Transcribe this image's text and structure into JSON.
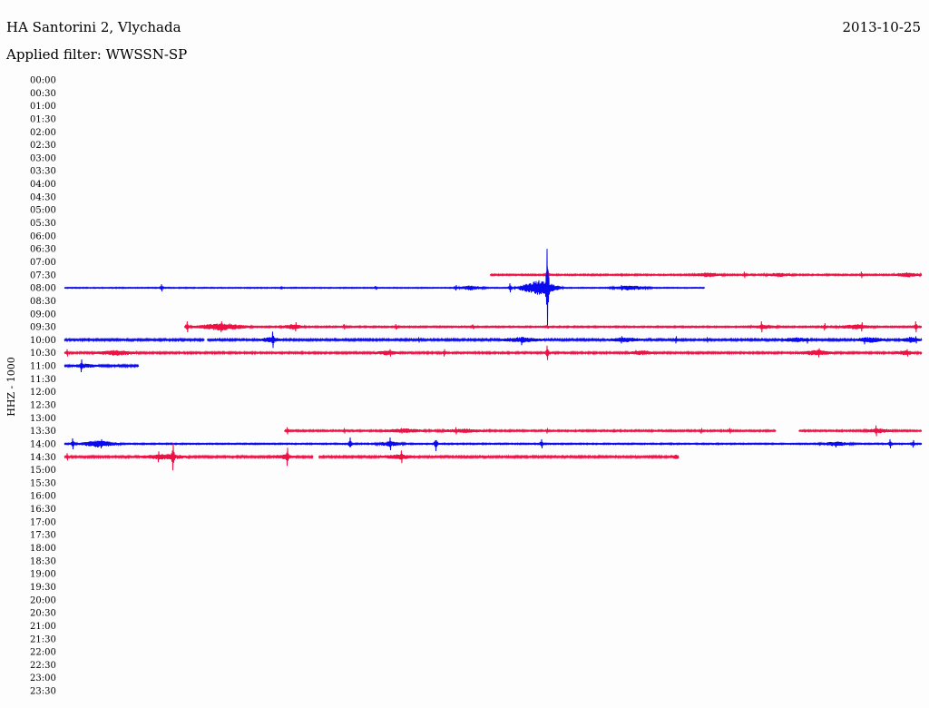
{
  "header": {
    "station": "HA Santorini 2, Vlychada",
    "date": "2013-10-25",
    "filter": "Applied filter: WWSSN-SP"
  },
  "chart_data": {
    "type": "line",
    "title": "HA Santorini 2, Vlychada",
    "ylabel": "HHZ - 1000",
    "y_tick_labels": [
      "00:00",
      "00:30",
      "01:00",
      "01:30",
      "02:00",
      "02:30",
      "03:00",
      "03:30",
      "04:00",
      "04:30",
      "05:00",
      "05:30",
      "06:00",
      "06:30",
      "07:00",
      "07:30",
      "08:00",
      "08:30",
      "09:00",
      "09:30",
      "10:00",
      "10:30",
      "11:00",
      "11:30",
      "12:00",
      "12:30",
      "13:00",
      "13:30",
      "14:00",
      "14:30",
      "15:00",
      "15:30",
      "16:00",
      "16:30",
      "17:00",
      "17:30",
      "18:00",
      "18:30",
      "19:00",
      "19:30",
      "20:00",
      "20:30",
      "21:00",
      "21:30",
      "22:00",
      "22:30",
      "23:00",
      "23:30"
    ],
    "x_range_minutes": [
      0,
      30
    ],
    "colors": {
      "odd_row": "#ee1144",
      "even_row": "#0a0aee"
    },
    "traces": [
      {
        "row": "07:30",
        "color": "#ee1144",
        "start_min": 14.9,
        "end_min": 30,
        "noise": 0.8,
        "segments": [
          {
            "start": 14.9,
            "end": 30
          }
        ],
        "events": [
          {
            "t": 16.9,
            "amp": 9
          },
          {
            "t": 19.5,
            "amp": 1.5
          },
          {
            "t": 23.8,
            "amp": 3.5
          },
          {
            "t": 27.9,
            "amp": 3.5
          }
        ],
        "bursts": [
          {
            "t": 22.5,
            "w": 1.3,
            "amp": 2.2
          },
          {
            "t": 25.0,
            "w": 1.2,
            "amp": 2
          },
          {
            "t": 29.5,
            "w": 1.2,
            "amp": 2.3
          }
        ]
      },
      {
        "row": "08:00",
        "color": "#0a0aee",
        "start_min": 0,
        "end_min": 22.4,
        "noise": 0.55,
        "segments": [
          {
            "start": 0,
            "end": 22.4
          }
        ],
        "events": [
          {
            "t": 3.4,
            "amp": 4
          },
          {
            "t": 7.6,
            "amp": 1.5
          },
          {
            "t": 10.9,
            "amp": 2
          },
          {
            "t": 13.7,
            "amp": 3
          },
          {
            "t": 16.9,
            "amp": 43
          },
          {
            "t": 15.6,
            "amp": 5
          },
          {
            "t": 19.5,
            "amp": 3
          }
        ],
        "bursts": [
          {
            "t": 14.2,
            "w": 1.2,
            "amp": 2.4
          },
          {
            "t": 16.6,
            "w": 1.8,
            "amp": 8
          },
          {
            "t": 19.8,
            "w": 1.6,
            "amp": 2.5
          }
        ]
      },
      {
        "row": "09:30",
        "color": "#ee1144",
        "start_min": 4.2,
        "end_min": 30,
        "noise": 0.8,
        "segments": [
          {
            "start": 4.2,
            "end": 30
          }
        ],
        "events": [
          {
            "t": 4.3,
            "amp": 6
          },
          {
            "t": 5.5,
            "amp": 6
          },
          {
            "t": 8.1,
            "amp": 5
          },
          {
            "t": 9.8,
            "amp": 3
          },
          {
            "t": 11.6,
            "amp": 3
          },
          {
            "t": 14.3,
            "amp": 2.5
          },
          {
            "t": 16.9,
            "amp": 2
          },
          {
            "t": 24.4,
            "amp": 6
          },
          {
            "t": 26.6,
            "amp": 4
          },
          {
            "t": 27.9,
            "amp": 5
          },
          {
            "t": 29.8,
            "amp": 6
          }
        ],
        "bursts": [
          {
            "t": 5.5,
            "w": 2.4,
            "amp": 3.8
          },
          {
            "t": 8.0,
            "w": 1.0,
            "amp": 2.5
          },
          {
            "t": 24.5,
            "w": 1.2,
            "amp": 2
          },
          {
            "t": 27.7,
            "w": 1.6,
            "amp": 2.5
          }
        ]
      },
      {
        "row": "10:00",
        "color": "#0a0aee",
        "start_min": 0,
        "end_min": 30,
        "noise": 1.1,
        "segments": [
          {
            "start": 0,
            "end": 4.9
          },
          {
            "start": 5.0,
            "end": 30
          }
        ],
        "events": [
          {
            "t": 7.3,
            "amp": 9
          },
          {
            "t": 12.4,
            "amp": 3
          },
          {
            "t": 16.0,
            "amp": 6
          },
          {
            "t": 19.5,
            "amp": 4
          },
          {
            "t": 21.4,
            "amp": 4
          },
          {
            "t": 22.5,
            "amp": 3
          },
          {
            "t": 26.0,
            "amp": 4
          },
          {
            "t": 28.0,
            "amp": 5
          },
          {
            "t": 29.8,
            "amp": 4
          }
        ],
        "bursts": [
          {
            "t": 7.2,
            "w": 1.0,
            "amp": 2.2
          },
          {
            "t": 16.0,
            "w": 1.8,
            "amp": 2.4
          },
          {
            "t": 19.6,
            "w": 1.5,
            "amp": 2
          },
          {
            "t": 25.6,
            "w": 1.2,
            "amp": 2.3
          },
          {
            "t": 28.2,
            "w": 1.3,
            "amp": 2.6
          },
          {
            "t": 29.6,
            "w": 0.8,
            "amp": 2.6
          }
        ]
      },
      {
        "row": "10:30",
        "color": "#ee1144",
        "start_min": 0,
        "end_min": 30,
        "noise": 1.0,
        "segments": [
          {
            "start": 0,
            "end": 30
          }
        ],
        "events": [
          {
            "t": 0.1,
            "amp": 4
          },
          {
            "t": 1.7,
            "amp": 3
          },
          {
            "t": 11.4,
            "amp": 4
          },
          {
            "t": 13.3,
            "amp": 4
          },
          {
            "t": 16.9,
            "amp": 8
          },
          {
            "t": 20.0,
            "amp": 3
          },
          {
            "t": 26.4,
            "amp": 5
          },
          {
            "t": 29.5,
            "amp": 4
          }
        ],
        "bursts": [
          {
            "t": 1.8,
            "w": 1.8,
            "amp": 2.3
          },
          {
            "t": 11.3,
            "w": 1.0,
            "amp": 2.2
          },
          {
            "t": 20.2,
            "w": 1.2,
            "amp": 2
          },
          {
            "t": 26.3,
            "w": 1.5,
            "amp": 2.6
          },
          {
            "t": 29.4,
            "w": 0.9,
            "amp": 2
          }
        ]
      },
      {
        "row": "11:00",
        "color": "#0a0aee",
        "start_min": 0,
        "end_min": 2.6,
        "noise": 1.1,
        "segments": [
          {
            "start": 0,
            "end": 2.6
          }
        ],
        "events": [
          {
            "t": 0.6,
            "amp": 7
          }
        ],
        "bursts": [
          {
            "t": 0.7,
            "w": 1.0,
            "amp": 1.8
          }
        ]
      },
      {
        "row": "13:30",
        "color": "#ee1144",
        "start_min": 7.7,
        "end_min": 30,
        "noise": 0.9,
        "segments": [
          {
            "start": 7.7,
            "end": 24.9
          },
          {
            "start": 25.7,
            "end": 30
          }
        ],
        "events": [
          {
            "t": 7.8,
            "amp": 4
          },
          {
            "t": 9.8,
            "amp": 3
          },
          {
            "t": 11.8,
            "amp": 3
          },
          {
            "t": 13.7,
            "amp": 4
          },
          {
            "t": 16.9,
            "amp": 3
          },
          {
            "t": 22.3,
            "amp": 3
          },
          {
            "t": 23.3,
            "amp": 3
          },
          {
            "t": 28.4,
            "amp": 6
          }
        ],
        "bursts": [
          {
            "t": 11.9,
            "w": 2.0,
            "amp": 2
          },
          {
            "t": 14.0,
            "w": 2.0,
            "amp": 1.8
          },
          {
            "t": 28.5,
            "w": 1.2,
            "amp": 2.2
          }
        ]
      },
      {
        "row": "14:00",
        "color": "#0a0aee",
        "start_min": 0,
        "end_min": 30,
        "noise": 0.7,
        "segments": [
          {
            "start": 0,
            "end": 30
          }
        ],
        "events": [
          {
            "t": 0.3,
            "amp": 6
          },
          {
            "t": 1.3,
            "amp": 5
          },
          {
            "t": 10.0,
            "amp": 7
          },
          {
            "t": 11.4,
            "amp": 7
          },
          {
            "t": 13.0,
            "amp": 8
          },
          {
            "t": 16.7,
            "amp": 5
          },
          {
            "t": 27.0,
            "amp": 4
          },
          {
            "t": 28.9,
            "amp": 5
          },
          {
            "t": 29.7,
            "amp": 4
          }
        ],
        "bursts": [
          {
            "t": 1.2,
            "w": 1.8,
            "amp": 3.5
          },
          {
            "t": 11.4,
            "w": 1.2,
            "amp": 2.5
          },
          {
            "t": 27.0,
            "w": 1.4,
            "amp": 2.3
          }
        ]
      },
      {
        "row": "14:30",
        "color": "#ee1144",
        "start_min": 0,
        "end_min": 21.5,
        "noise": 1.1,
        "segments": [
          {
            "start": 0,
            "end": 8.7
          },
          {
            "start": 8.9,
            "end": 21.5
          }
        ],
        "events": [
          {
            "t": 0.1,
            "amp": 4
          },
          {
            "t": 3.3,
            "amp": 6
          },
          {
            "t": 3.8,
            "amp": 15
          },
          {
            "t": 7.8,
            "amp": 10
          },
          {
            "t": 11.8,
            "amp": 7
          }
        ],
        "bursts": [
          {
            "t": 3.5,
            "w": 2.0,
            "amp": 2.4
          },
          {
            "t": 7.7,
            "w": 1.0,
            "amp": 2
          },
          {
            "t": 11.7,
            "w": 1.5,
            "amp": 2.2
          },
          {
            "t": 21.4,
            "w": 0.3,
            "amp": 2.5
          }
        ]
      }
    ]
  }
}
